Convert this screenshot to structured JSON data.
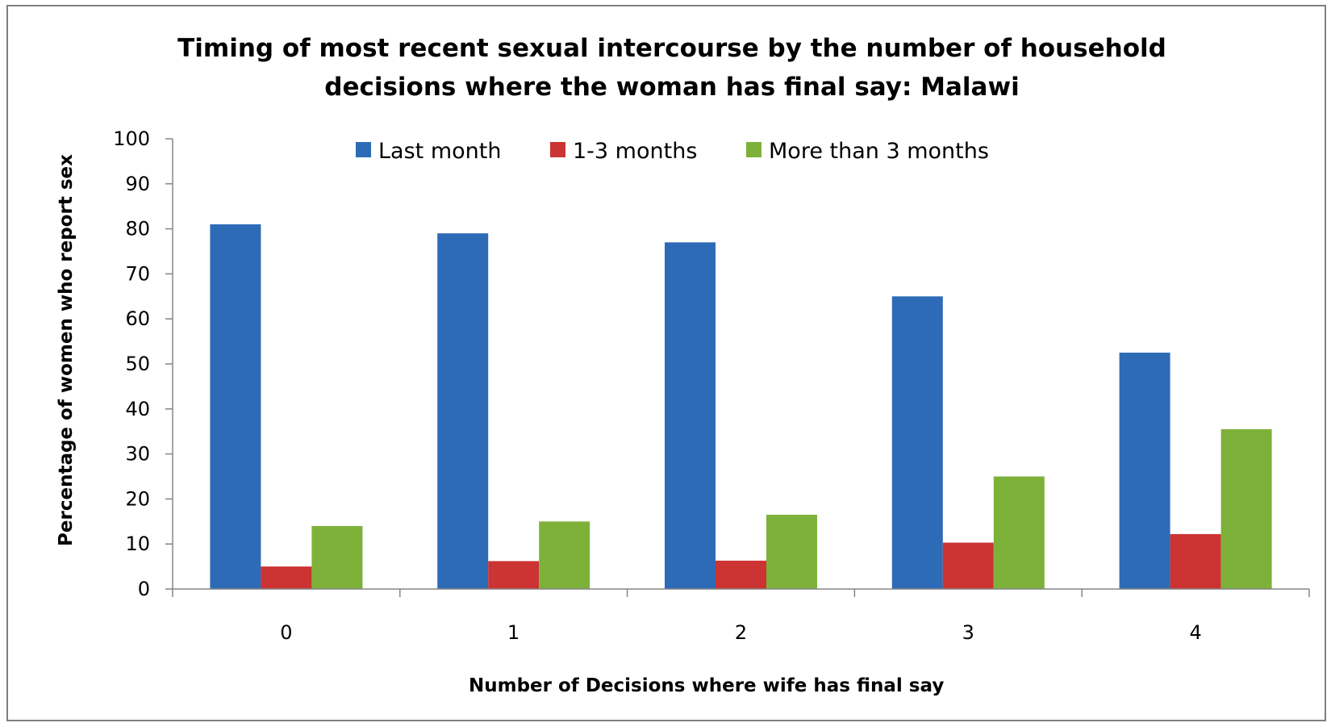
{
  "chart_data": {
    "type": "bar",
    "title_line1": "Timing of most recent sexual intercourse by the number of household",
    "title_line2": "decisions where the woman has final say: Malawi",
    "xlabel": "Number of Decisions where wife has final say",
    "ylabel": "Percentage of women who report sex",
    "ylim": [
      0,
      100
    ],
    "yticks": [
      "0",
      "10",
      "20",
      "30",
      "40",
      "50",
      "60",
      "70",
      "80",
      "90",
      "100"
    ],
    "categories": [
      "0",
      "1",
      "2",
      "3",
      "4"
    ],
    "legend_position": "top",
    "grid": false,
    "series": [
      {
        "name": "Last month",
        "color": "#2e6bb7",
        "values": [
          81,
          79,
          77,
          65,
          52.5
        ]
      },
      {
        "name": "1-3 months",
        "color": "#cc3333",
        "values": [
          5,
          6.2,
          6.3,
          10.3,
          12.2
        ]
      },
      {
        "name": "More than 3 months",
        "color": "#7db13a",
        "values": [
          14,
          15,
          16.5,
          25,
          35.5
        ]
      }
    ]
  }
}
